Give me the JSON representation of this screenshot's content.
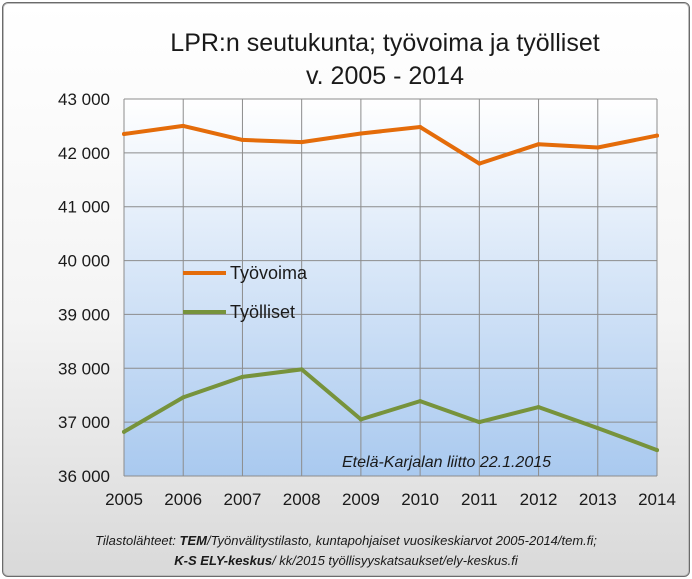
{
  "chart_data": {
    "type": "line",
    "title_line1": "LPR:n seutukunta; työvoima ja työlliset",
    "title_line2": "v. 2005 - 2014",
    "x": [
      "2005",
      "2006",
      "2007",
      "2008",
      "2009",
      "2010",
      "2011",
      "2012",
      "2013",
      "2014"
    ],
    "yticks": [
      "36 000",
      "37 000",
      "38 000",
      "39 000",
      "40 000",
      "41 000",
      "42 000",
      "43 000"
    ],
    "ylim": [
      36000,
      43000
    ],
    "grid": true,
    "legend_placement": "center-left",
    "series": [
      {
        "name": "Työvoima",
        "color": "#e46c0a",
        "values": [
          42350,
          42500,
          42240,
          42200,
          42360,
          42480,
          41800,
          42160,
          42100,
          42320
        ]
      },
      {
        "name": "Työlliset",
        "color": "#77933c",
        "values": [
          36820,
          37460,
          37840,
          37980,
          37050,
          37390,
          37000,
          37280,
          36890,
          36480
        ]
      }
    ],
    "annotation": "Etelä-Karjalan liitto 22.1.2015"
  },
  "source": {
    "line1_prefix": "Tilastolähteet: ",
    "line1_bold": "TEM",
    "line1_rest": "/Työnvälitystilasto, kuntapohjaiset vuosikeskiarvot 2005-2014/tem.fi;",
    "line2_bold": "K-S ELY-keskus",
    "line2_rest": "/ kk/2015 työllisyyskatsaukset/ely-keskus.fi"
  }
}
